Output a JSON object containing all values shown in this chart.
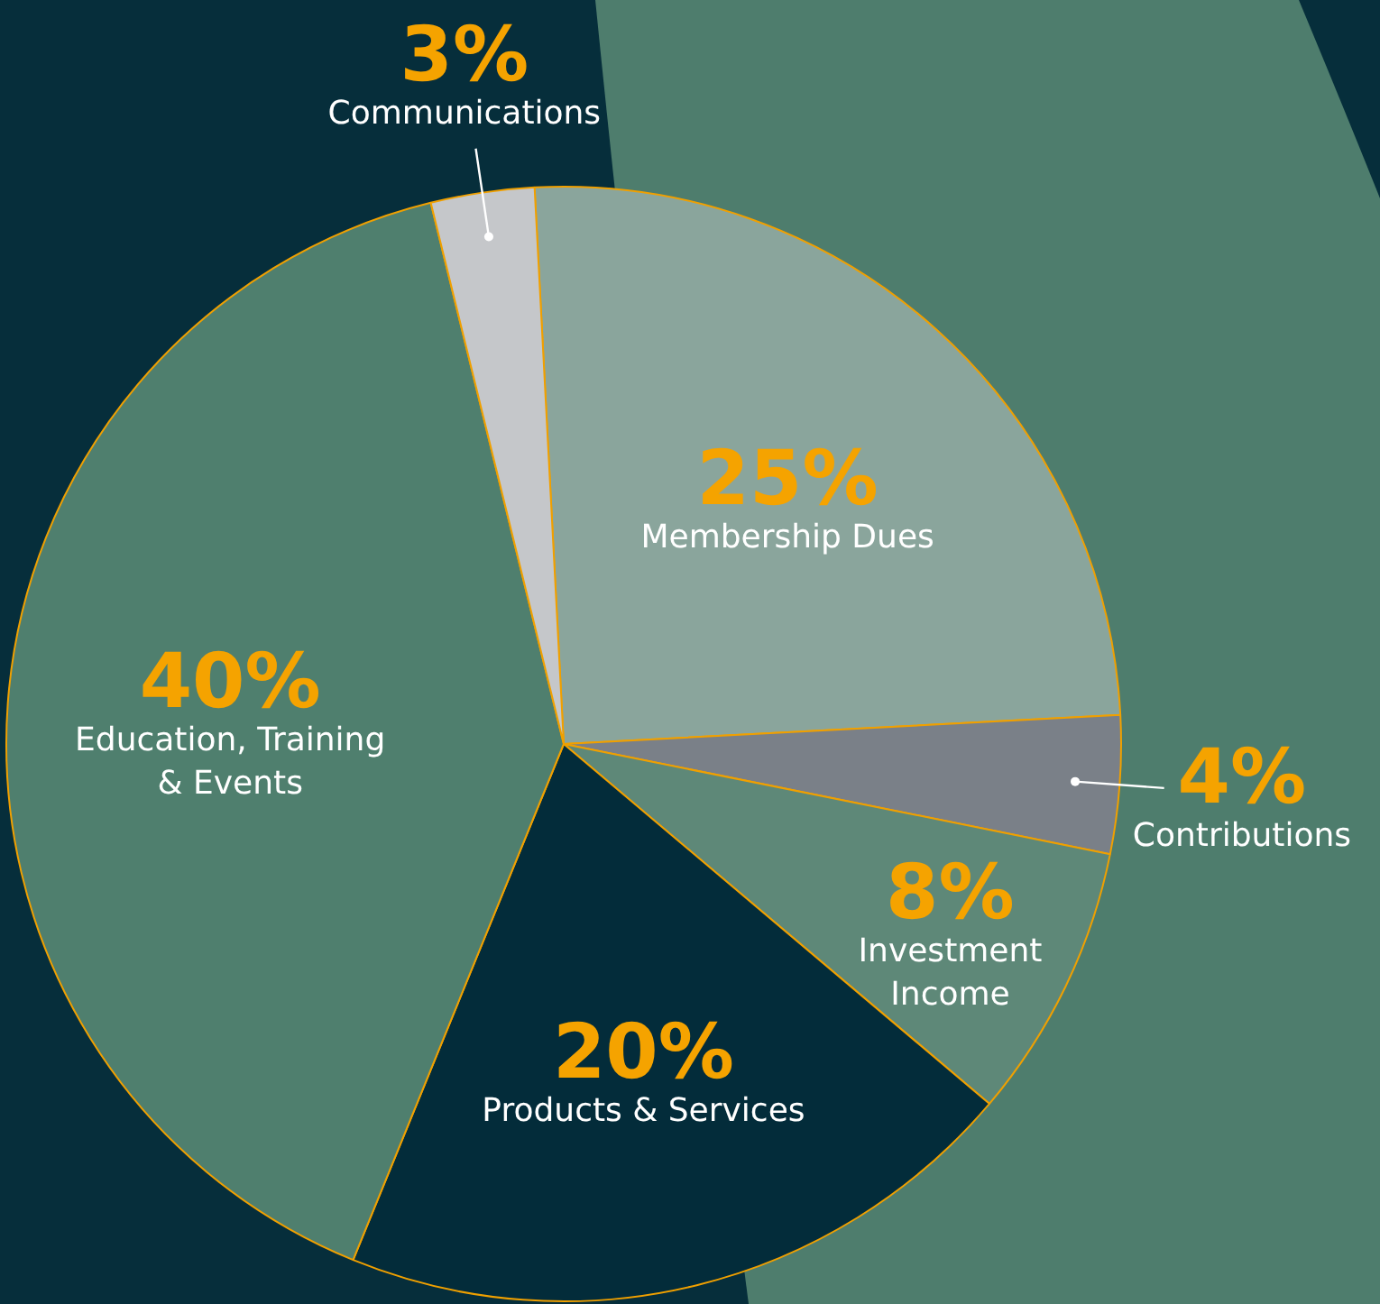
{
  "chart_data": {
    "type": "pie",
    "categories": [
      "Membership Dues",
      "Contributions",
      "Investment\nIncome",
      "Products & Services",
      "Education, Training\n& Events",
      "Communications"
    ],
    "values": [
      25,
      4,
      8,
      20,
      40,
      3
    ],
    "value_labels": [
      "25%",
      "4%",
      "8%",
      "20%",
      "40%",
      "3%"
    ],
    "colors": [
      "#8aa59c",
      "#7a8088",
      "#5e8878",
      "#032c3a",
      "#4f7f6e",
      "#c5c7ca"
    ],
    "legend": false
  }
}
